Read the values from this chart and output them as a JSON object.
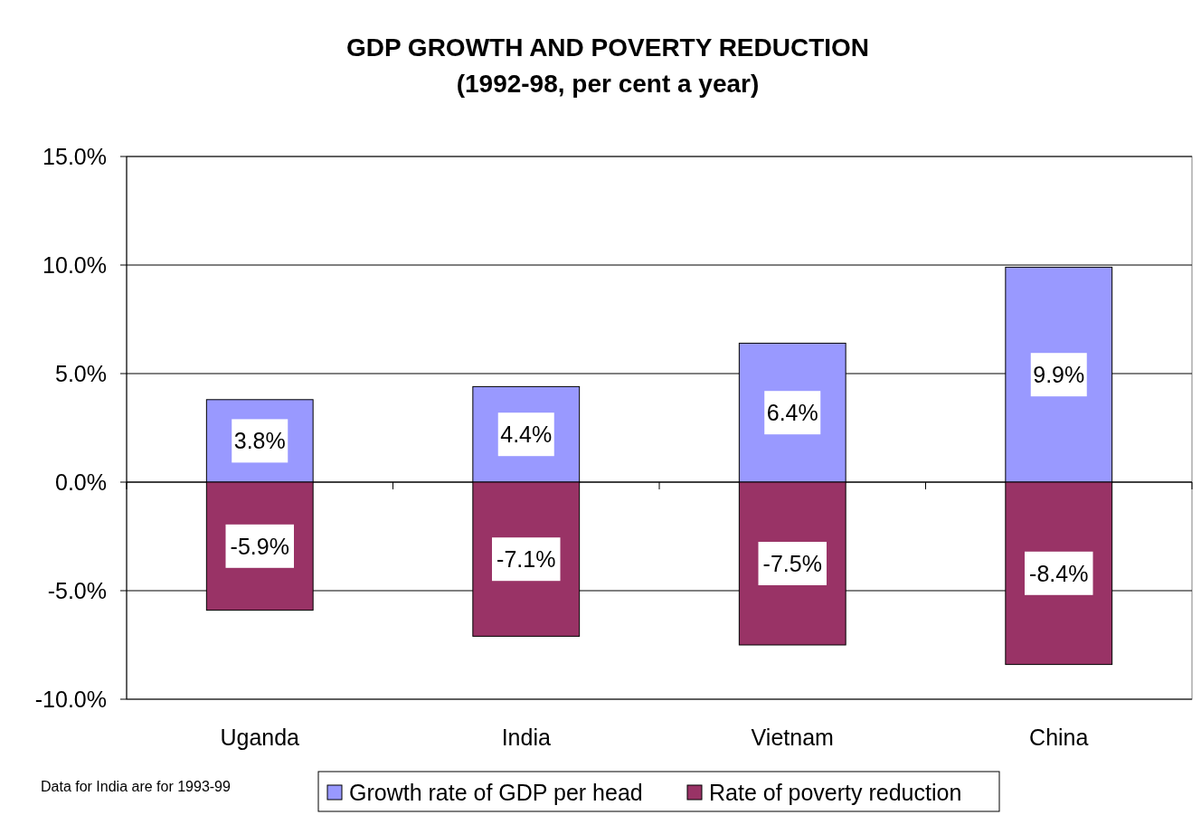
{
  "chart_data": {
    "type": "bar",
    "title": "GDP GROWTH AND POVERTY REDUCTION",
    "subtitle": "(1992-98, per cent a year)",
    "categories": [
      "Uganda",
      "India",
      "Vietnam",
      "China"
    ],
    "stacked": true,
    "series": [
      {
        "name": "Growth rate of GDP per head",
        "color": "#9999ff",
        "values": [
          3.8,
          4.4,
          6.4,
          9.9
        ],
        "value_labels": [
          "3.8%",
          "4.4%",
          "6.4%",
          "9.9%"
        ]
      },
      {
        "name": "Rate of poverty reduction",
        "color": "#993366",
        "values": [
          -5.9,
          -7.1,
          -7.5,
          -8.4
        ],
        "value_labels": [
          "-5.9%",
          "-7.1%",
          "-7.5%",
          "-8.4%"
        ]
      }
    ],
    "ylim": [
      -10,
      15
    ],
    "yticks": [
      {
        "value": -10,
        "label": "-10.0%"
      },
      {
        "value": -5,
        "label": "-5.0%"
      },
      {
        "value": 0,
        "label": "0.0%"
      },
      {
        "value": 5,
        "label": "5.0%"
      },
      {
        "value": 10,
        "label": "10.0%"
      },
      {
        "value": 15,
        "label": "15.0%"
      }
    ],
    "grid": "y",
    "legend": "bottom",
    "annotations": [
      "Data for India are for 1993-99"
    ]
  }
}
